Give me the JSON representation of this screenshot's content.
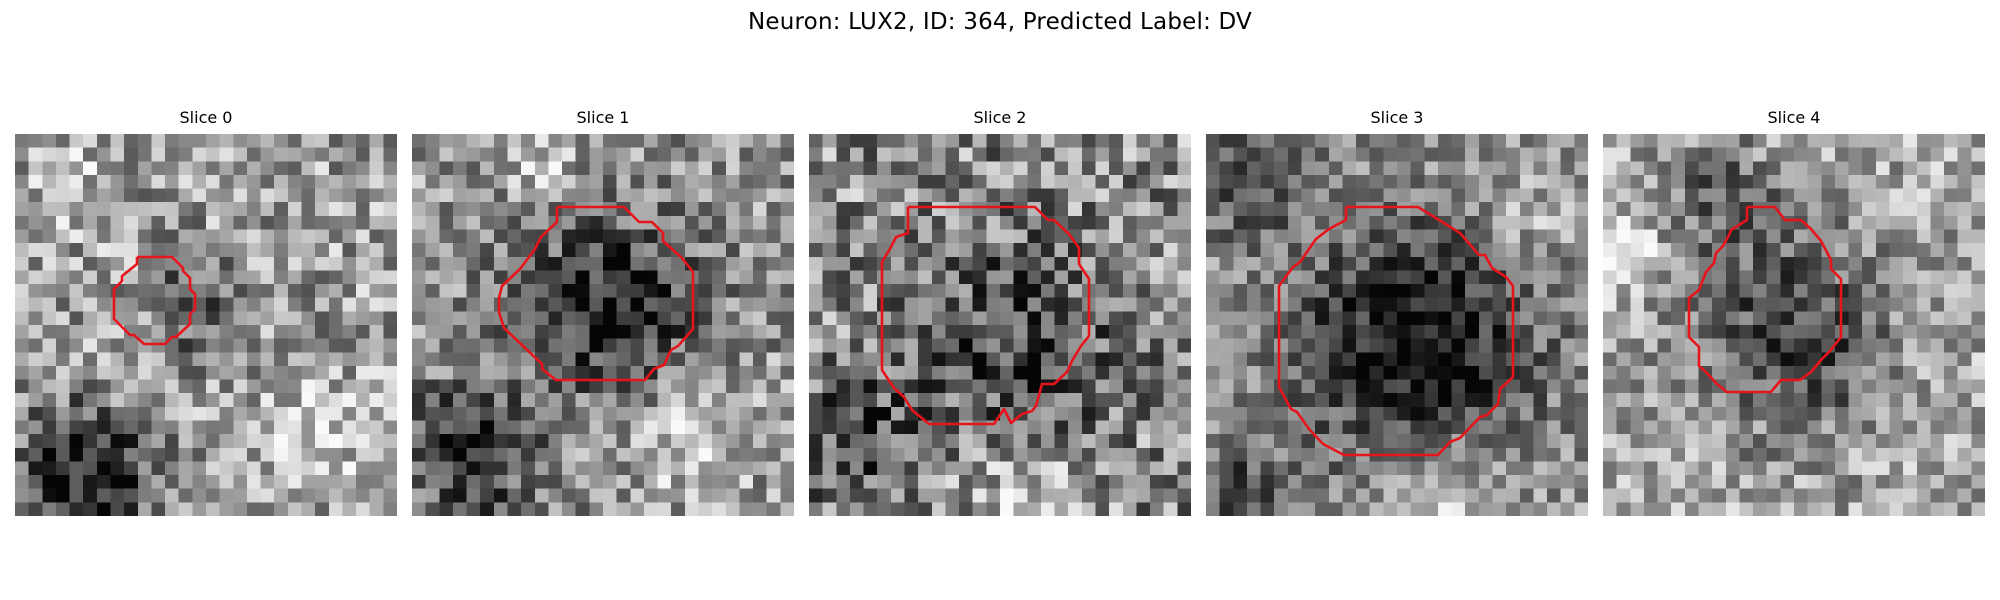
{
  "figure": {
    "title": "Neuron: LUX2, ID: 364, Predicted Label: DV",
    "colormap": "grayscale",
    "outline_color": "#e8141c",
    "panels": [
      {
        "title": "Slice 0"
      },
      {
        "title": "Slice 1"
      },
      {
        "title": "Slice 2"
      },
      {
        "title": "Slice 3"
      },
      {
        "title": "Slice 4"
      }
    ]
  }
}
